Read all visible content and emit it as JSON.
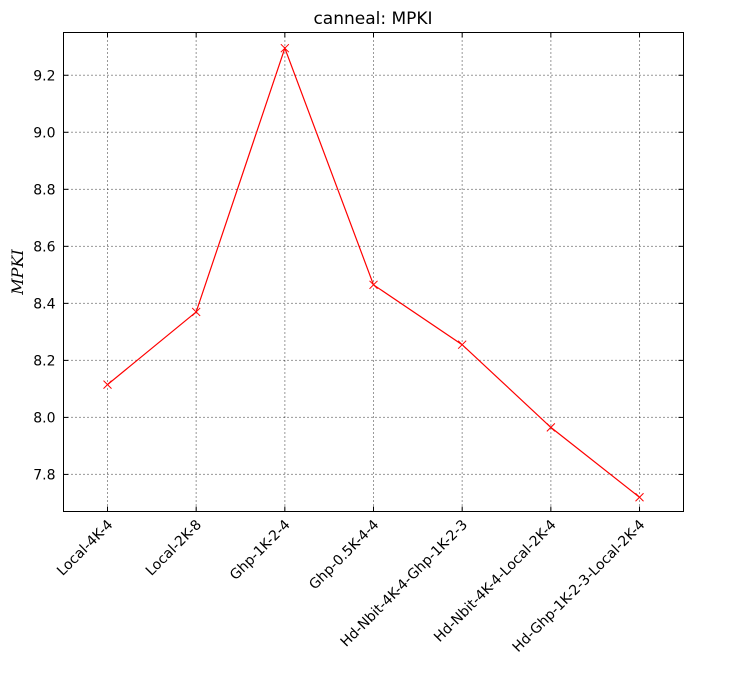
{
  "chart_data": {
    "type": "line",
    "title": "canneal: MPKI",
    "xlabel": "",
    "ylabel": "MPKI",
    "categories": [
      "Local-4K-4",
      "Local-2K-8",
      "Ghp-1K-2-4",
      "Ghp-0.5K-4-4",
      "Hd-Nbit-4K-4-Ghp-1K-2-3",
      "Hd-Nbit-4K-4-Local-2K-4",
      "Hd-Ghp-1K-2-3-Local-2K-4"
    ],
    "series": [
      {
        "values": [
          8.115,
          8.37,
          9.295,
          8.465,
          8.255,
          7.965,
          7.72
        ],
        "color": "#ff0000",
        "marker": "x"
      }
    ],
    "ylim": [
      7.67,
      9.35
    ],
    "yticks": [
      "7.8",
      "8.0",
      "8.2",
      "8.4",
      "8.6",
      "8.8",
      "9.0",
      "9.2"
    ],
    "grid": true,
    "legend": "none"
  }
}
